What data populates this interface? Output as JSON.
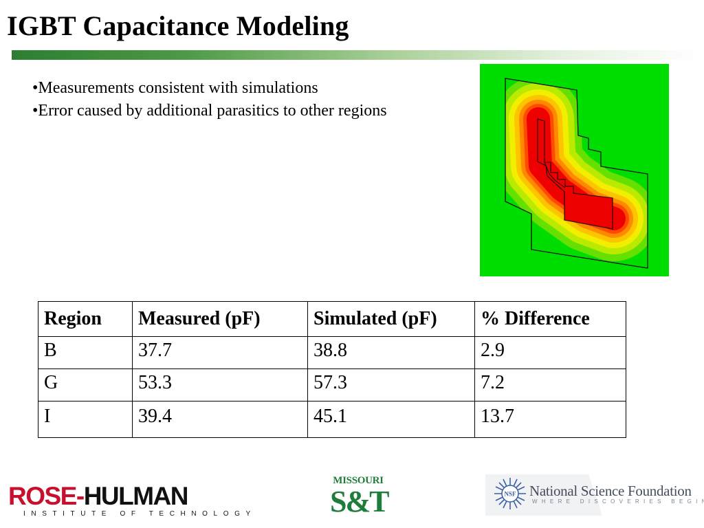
{
  "slide": {
    "title": "IGBT Capacitance Modeling",
    "bullets": [
      "•Measurements consistent with simulations",
      "•Error caused by additional parasitics to other regions"
    ]
  },
  "colors": {
    "title_bar_start": "#2e7d32",
    "field_background": "#00dd00",
    "field_hot": "#ee0000",
    "outline": "#111111"
  },
  "table": {
    "headers": [
      "Region",
      "Measured (pF)",
      "Simulated (pF)",
      "% Difference"
    ],
    "rows": [
      [
        "B",
        "37.7",
        "38.8",
        "2.9"
      ],
      [
        "G",
        "53.3",
        "57.3",
        "7.2"
      ],
      [
        "I",
        "39.4",
        "45.1",
        "13.7"
      ]
    ]
  },
  "logos": {
    "rose_hulman": {
      "name": "ROSE-HULMAN",
      "tagline": "INSTITUTE OF TECHNOLOGY"
    },
    "missouri_st": {
      "top": "MISSOURI",
      "mark": "S&T"
    },
    "nsf": {
      "seal_text": "NSF",
      "name": "National Science Foundation",
      "tagline": "WHERE DISCOVERIES BEGIN"
    }
  }
}
